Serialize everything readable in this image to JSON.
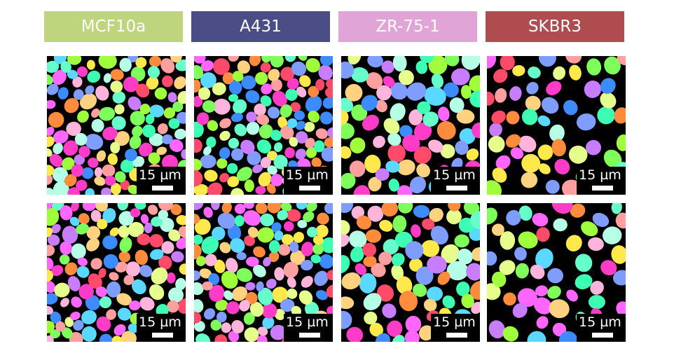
{
  "columns": [
    {
      "label": "MCF10a",
      "color": "#bed57d",
      "text_color": "#ffffff"
    },
    {
      "label": "A431",
      "color": "#4b4d86",
      "text_color": "#ffffff"
    },
    {
      "label": "ZR-75-1",
      "color": "#e0a4d6",
      "text_color": "#ffffff"
    },
    {
      "label": "SKBR3",
      "color": "#ae4c4f",
      "text_color": "#ffffff"
    }
  ],
  "scale_bar": {
    "label": "15 µm"
  },
  "palette": [
    "#ff3cc8",
    "#7fff5a",
    "#ffe94a",
    "#5ad8ff",
    "#ff8c3c",
    "#c87dff",
    "#3cffb4",
    "#ff4a6a",
    "#a0ff3c",
    "#3c8cff",
    "#ffb4dc",
    "#b4ffe6",
    "#e6ff8c",
    "#ff66ff",
    "#66ffcc",
    "#ffd27f",
    "#7f9cff",
    "#ff9f9f"
  ]
}
